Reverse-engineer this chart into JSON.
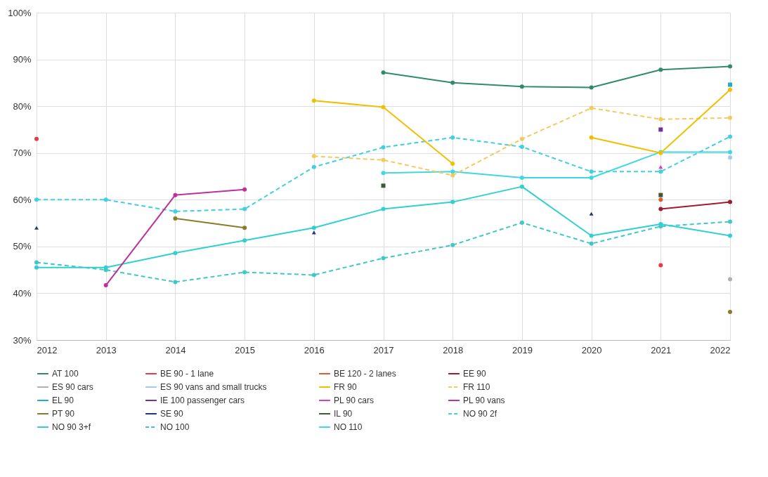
{
  "chart_data": {
    "type": "line",
    "x": [
      2012,
      2013,
      2014,
      2015,
      2016,
      2017,
      2018,
      2019,
      2020,
      2021,
      2022
    ],
    "xlim": [
      2012,
      2022
    ],
    "xticks": [
      2012,
      2013,
      2014,
      2015,
      2016,
      2017,
      2018,
      2019,
      2020,
      2021,
      2022
    ],
    "ylim": [
      30,
      100
    ],
    "yticks": [
      {
        "value": 30,
        "label": "30%"
      },
      {
        "value": 40,
        "label": "40%"
      },
      {
        "value": 50,
        "label": "50%"
      },
      {
        "value": 60,
        "label": "60%"
      },
      {
        "value": 70,
        "label": "70%"
      },
      {
        "value": 80,
        "label": "80%"
      },
      {
        "value": 90,
        "label": "90%"
      },
      {
        "value": 100,
        "label": "100%"
      }
    ],
    "grid": true,
    "legend": "bottom",
    "marker": "circle",
    "line_style": "solid",
    "series": [
      {
        "name": "AT 100",
        "color": "#2e8b6e",
        "values": [
          null,
          null,
          null,
          null,
          null,
          87.2,
          85,
          84.2,
          84,
          87.8,
          88.5
        ]
      },
      {
        "name": "BE 90 - 1 lane",
        "type": "scatter",
        "color": "#e8394a",
        "values": [
          73,
          null,
          null,
          null,
          null,
          null,
          null,
          null,
          null,
          46,
          null
        ]
      },
      {
        "name": "BE 120 - 2 lanes",
        "type": "scatter",
        "color": "#e05a30",
        "values": [
          null,
          null,
          null,
          null,
          null,
          null,
          null,
          null,
          null,
          60,
          null
        ]
      },
      {
        "name": "EE 90",
        "color": "#a01c2c",
        "values": [
          null,
          null,
          null,
          null,
          null,
          null,
          null,
          null,
          null,
          58,
          59.5
        ]
      },
      {
        "name": "ES 90 cars",
        "type": "scatter",
        "color": "#b0b0b0",
        "values": [
          null,
          null,
          null,
          null,
          null,
          null,
          null,
          null,
          null,
          null,
          43
        ]
      },
      {
        "name": "ES 90 vans and small trucks",
        "type": "scatter",
        "color": "#a8c8e8",
        "values": [
          null,
          null,
          null,
          null,
          null,
          null,
          null,
          null,
          null,
          null,
          69
        ]
      },
      {
        "name": "FR 90",
        "color": "#f0c000",
        "values": [
          null,
          null,
          null,
          null,
          81.2,
          79.8,
          67.7,
          null,
          73.3,
          70,
          83.5
        ]
      },
      {
        "name": "FR 110",
        "color": "#f5c860",
        "line_style": "dashed",
        "values": [
          null,
          null,
          null,
          null,
          69.3,
          68.5,
          65.2,
          73,
          79.6,
          77.2,
          77.5
        ]
      },
      {
        "name": "EL 90",
        "type": "scatter",
        "color": "#20b0c0",
        "marker": "square",
        "values": [
          null,
          null,
          null,
          null,
          null,
          null,
          null,
          null,
          null,
          null,
          84.6
        ]
      },
      {
        "name": "IE 100 passenger cars",
        "type": "scatter",
        "color": "#7030a0",
        "marker": "square",
        "values": [
          null,
          null,
          null,
          null,
          null,
          null,
          null,
          null,
          null,
          75,
          null
        ]
      },
      {
        "name": "PL 90 cars",
        "type": "scatter",
        "color": "#d040c0",
        "marker": "triangle",
        "values": [
          null,
          null,
          null,
          null,
          null,
          null,
          null,
          null,
          null,
          67,
          null
        ]
      },
      {
        "name": "PL 90 vans",
        "color": "#c0309a",
        "values": [
          null,
          41.7,
          61,
          62.2,
          null,
          null,
          null,
          null,
          null,
          null,
          null
        ]
      },
      {
        "name": "PT 90",
        "color": "#8a7a2a",
        "values": [
          null,
          null,
          56,
          54,
          null,
          null,
          null,
          null,
          null,
          null,
          36
        ]
      },
      {
        "name": "SE 90",
        "type": "scatter",
        "color": "#1f3a70",
        "marker": "triangle",
        "values": [
          54,
          null,
          null,
          null,
          53,
          null,
          null,
          null,
          57,
          null,
          null
        ]
      },
      {
        "name": "IL 90",
        "type": "scatter",
        "color": "#3a5a3a",
        "marker": "square",
        "values": [
          null,
          null,
          null,
          null,
          null,
          63,
          null,
          null,
          null,
          61,
          null
        ]
      },
      {
        "name": "NO 90 2f",
        "color": "#40d0e0",
        "line_style": "dashed",
        "values": [
          60,
          60,
          57.5,
          58,
          67,
          71.2,
          73.3,
          71.3,
          66,
          66,
          73.5
        ]
      },
      {
        "name": "NO 90 3+f",
        "color": "#30d0d0",
        "values": [
          45.5,
          45.5,
          48.6,
          51.3,
          54,
          58,
          59.5,
          62.8,
          52.3,
          54.8,
          52.3
        ]
      },
      {
        "name": "NO 100",
        "color": "#40c8c8",
        "line_style": "dashed",
        "values": [
          46.6,
          45,
          42.4,
          44.5,
          43.9,
          47.5,
          50.3,
          55.1,
          50.6,
          54.3,
          55.3
        ]
      },
      {
        "name": "NO 110",
        "color": "#40d8e0",
        "values": [
          null,
          null,
          null,
          null,
          null,
          65.7,
          66,
          64.7,
          64.7,
          70.2,
          70.2
        ]
      }
    ]
  }
}
